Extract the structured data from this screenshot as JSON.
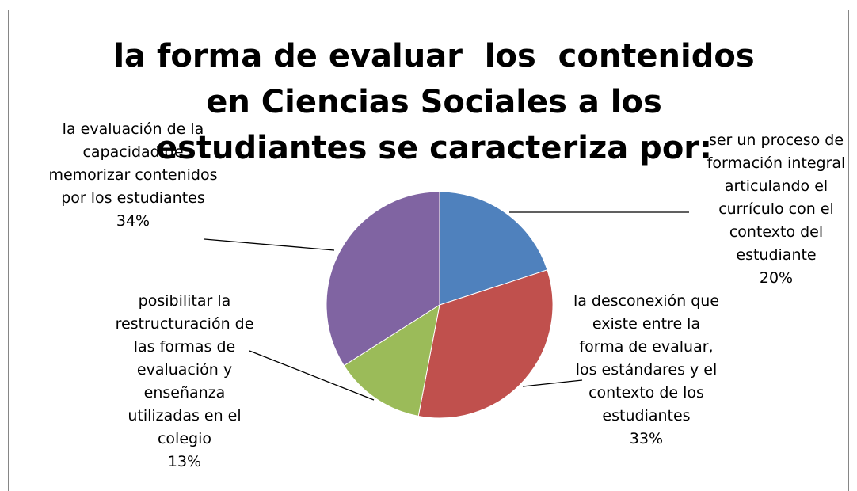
{
  "chart_data": {
    "type": "pie",
    "title": "la forma de evaluar  los  contenidos en Ciencias Sociales a los estudiantes se caracteriza por:",
    "categories": [
      "ser un proceso de formación integral articulando el currículo con el contexto del estudiante",
      "la desconexión que existe entre la forma de evaluar,  los estándares y el contexto de los estudiantes",
      "posibilitar la restructuración de las formas de evaluación y enseñanza utilizadas en el colegio",
      "la evaluación de la capacidad de memorizar contenidos por los estudiantes"
    ],
    "values": [
      20,
      33,
      13,
      34
    ],
    "value_labels": [
      "20%",
      "33%",
      "13%",
      "34%"
    ],
    "colors": [
      "#4f81bd",
      "#c0504d",
      "#9bbb59",
      "#8064a2"
    ]
  }
}
